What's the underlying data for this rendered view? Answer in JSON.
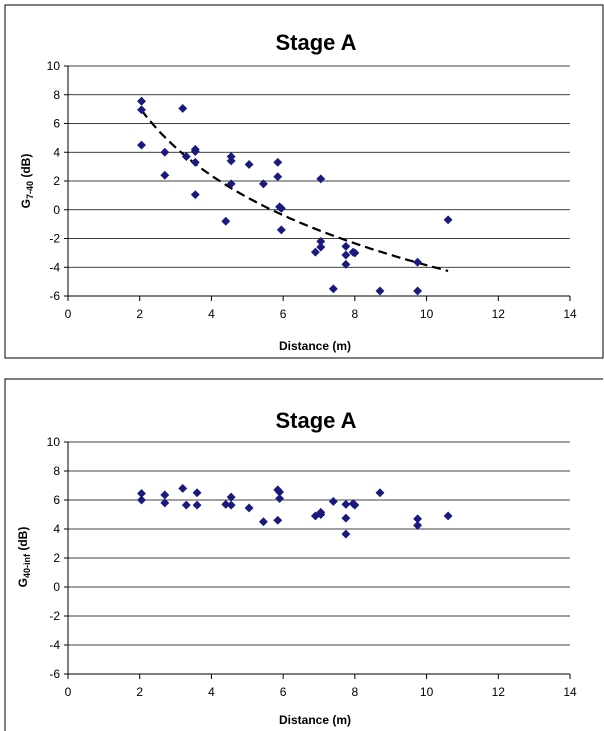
{
  "chart_data": [
    {
      "type": "scatter",
      "title": "Stage A",
      "xlabel": "Distance (m)",
      "ylabel_main": "G",
      "ylabel_sub": "7-40",
      "ylabel_unit": " (dB)",
      "xlim": [
        0,
        14
      ],
      "ylim": [
        -6,
        10
      ],
      "x_ticks": [
        "0",
        "2",
        "4",
        "6",
        "8",
        "10",
        "12",
        "14"
      ],
      "y_ticks": [
        "10",
        "8",
        "6",
        "4",
        "2",
        "0",
        "-2",
        "-4",
        "-6"
      ],
      "grid": "horizontal",
      "marker_color": "#1a1a7e",
      "trendline": {
        "style": "dashed",
        "color": "#000000",
        "x_from": 2.05,
        "x_to": 10.6
      },
      "points": [
        [
          2.05,
          7.55
        ],
        [
          2.05,
          6.95
        ],
        [
          2.05,
          4.5
        ],
        [
          2.7,
          4.0
        ],
        [
          2.7,
          2.4
        ],
        [
          3.2,
          7.05
        ],
        [
          3.3,
          3.7
        ],
        [
          3.55,
          4.2
        ],
        [
          3.55,
          4.05
        ],
        [
          3.55,
          3.3
        ],
        [
          3.55,
          1.05
        ],
        [
          4.4,
          -0.8
        ],
        [
          4.55,
          3.7
        ],
        [
          4.55,
          3.4
        ],
        [
          4.55,
          1.8
        ],
        [
          5.05,
          3.15
        ],
        [
          5.45,
          1.8
        ],
        [
          5.85,
          3.3
        ],
        [
          5.85,
          2.3
        ],
        [
          5.9,
          0.2
        ],
        [
          5.95,
          0.1
        ],
        [
          5.95,
          -1.4
        ],
        [
          6.9,
          -2.95
        ],
        [
          7.05,
          2.15
        ],
        [
          7.05,
          -2.2
        ],
        [
          7.05,
          -2.6
        ],
        [
          7.4,
          -5.5
        ],
        [
          7.75,
          -2.55
        ],
        [
          7.75,
          -3.15
        ],
        [
          7.75,
          -3.8
        ],
        [
          7.95,
          -2.95
        ],
        [
          8.0,
          -3.0
        ],
        [
          8.7,
          -5.65
        ],
        [
          9.75,
          -3.65
        ],
        [
          9.75,
          -5.65
        ],
        [
          10.6,
          -0.7
        ]
      ]
    },
    {
      "type": "scatter",
      "title": "Stage A",
      "xlabel": "Distance (m)",
      "ylabel_main": "G",
      "ylabel_sub": "40-inf",
      "ylabel_unit": " (dB)",
      "xlim": [
        0,
        14
      ],
      "ylim": [
        -6,
        10
      ],
      "x_ticks": [
        "0",
        "2",
        "4",
        "6",
        "8",
        "10",
        "12",
        "14"
      ],
      "y_ticks": [
        "10",
        "8",
        "6",
        "4",
        "2",
        "0",
        "-2",
        "-4",
        "-6"
      ],
      "grid": "horizontal",
      "marker_color": "#1a1a7e",
      "points": [
        [
          2.05,
          6.45
        ],
        [
          2.05,
          6.0
        ],
        [
          2.7,
          6.35
        ],
        [
          2.7,
          5.8
        ],
        [
          3.2,
          6.8
        ],
        [
          3.3,
          5.65
        ],
        [
          3.6,
          6.5
        ],
        [
          3.6,
          5.65
        ],
        [
          4.4,
          5.7
        ],
        [
          4.55,
          6.2
        ],
        [
          4.55,
          5.65
        ],
        [
          5.05,
          5.45
        ],
        [
          5.45,
          4.5
        ],
        [
          5.85,
          6.7
        ],
        [
          5.9,
          6.55
        ],
        [
          5.9,
          6.1
        ],
        [
          5.85,
          4.6
        ],
        [
          6.9,
          4.9
        ],
        [
          7.05,
          5.15
        ],
        [
          7.05,
          5.0
        ],
        [
          7.4,
          5.9
        ],
        [
          7.75,
          5.7
        ],
        [
          7.75,
          4.75
        ],
        [
          7.75,
          3.65
        ],
        [
          7.95,
          5.75
        ],
        [
          8.0,
          5.65
        ],
        [
          8.7,
          6.5
        ],
        [
          9.75,
          4.7
        ],
        [
          9.75,
          4.25
        ],
        [
          10.6,
          4.9
        ]
      ]
    }
  ]
}
